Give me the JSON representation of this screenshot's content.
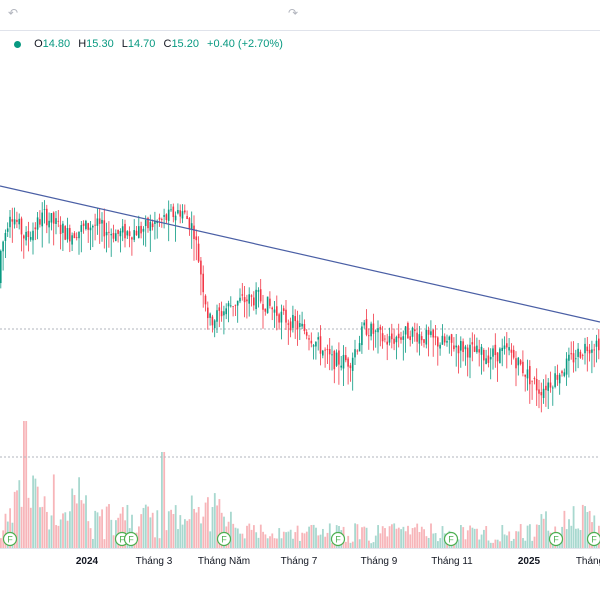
{
  "toolbar": {
    "undo_icon": "undo-icon",
    "redo_icon": "redo-icon"
  },
  "legend": {
    "open_label": "O",
    "open_value": "14.80",
    "high_label": "H",
    "high_value": "15.30",
    "low_label": "L",
    "low_value": "14.70",
    "close_label": "C",
    "close_value": "15.20",
    "change": "+0.40 (+2.70%)",
    "status_color": "#089981"
  },
  "colors": {
    "up": "#089981",
    "down": "#f23645",
    "trendline": "#4a5fa5",
    "vol_up": "#a8d8cf",
    "vol_down": "#f7b5b9",
    "dividend_marker": "#4caf50"
  },
  "chart_data": {
    "type": "candlestick",
    "xlabel": "",
    "ylabel": "",
    "time_axis_labels": [
      "2024",
      "Tháng 3",
      "Tháng Năm",
      "Tháng 7",
      "Tháng 9",
      "Tháng 11",
      "2025",
      "Tháng"
    ],
    "time_axis_bold": [
      "2024",
      "2025"
    ],
    "markers": {
      "label": "F",
      "count": 8
    },
    "price_path": [
      {
        "t": -0.02,
        "p": 15.0
      },
      {
        "t": 0.01,
        "p": 15.3
      },
      {
        "t": 0.035,
        "p": 16.7
      },
      {
        "t": 0.06,
        "p": 16.1
      },
      {
        "t": 0.09,
        "p": 16.6
      },
      {
        "t": 0.13,
        "p": 16.2
      },
      {
        "t": 0.17,
        "p": 16.4
      },
      {
        "t": 0.21,
        "p": 16.2
      },
      {
        "t": 0.25,
        "p": 16.3
      },
      {
        "t": 0.285,
        "p": 16.5
      },
      {
        "t": 0.315,
        "p": 16.7
      },
      {
        "t": 0.335,
        "p": 16.3
      },
      {
        "t": 0.36,
        "p": 14.4
      },
      {
        "t": 0.4,
        "p": 14.8
      },
      {
        "t": 0.44,
        "p": 14.9
      },
      {
        "t": 0.48,
        "p": 14.5
      },
      {
        "t": 0.52,
        "p": 14.2
      },
      {
        "t": 0.56,
        "p": 13.6
      },
      {
        "t": 0.59,
        "p": 13.6
      },
      {
        "t": 0.615,
        "p": 14.3
      },
      {
        "t": 0.65,
        "p": 14.0
      },
      {
        "t": 0.69,
        "p": 14.2
      },
      {
        "t": 0.73,
        "p": 14.0
      },
      {
        "t": 0.77,
        "p": 13.9
      },
      {
        "t": 0.81,
        "p": 13.7
      },
      {
        "t": 0.85,
        "p": 13.8
      },
      {
        "t": 0.875,
        "p": 13.4
      },
      {
        "t": 0.9,
        "p": 13.0
      },
      {
        "t": 0.92,
        "p": 13.2
      },
      {
        "t": 0.95,
        "p": 13.6
      },
      {
        "t": 0.975,
        "p": 13.9
      },
      {
        "t": 1.0,
        "p": 14.0
      }
    ]
  }
}
